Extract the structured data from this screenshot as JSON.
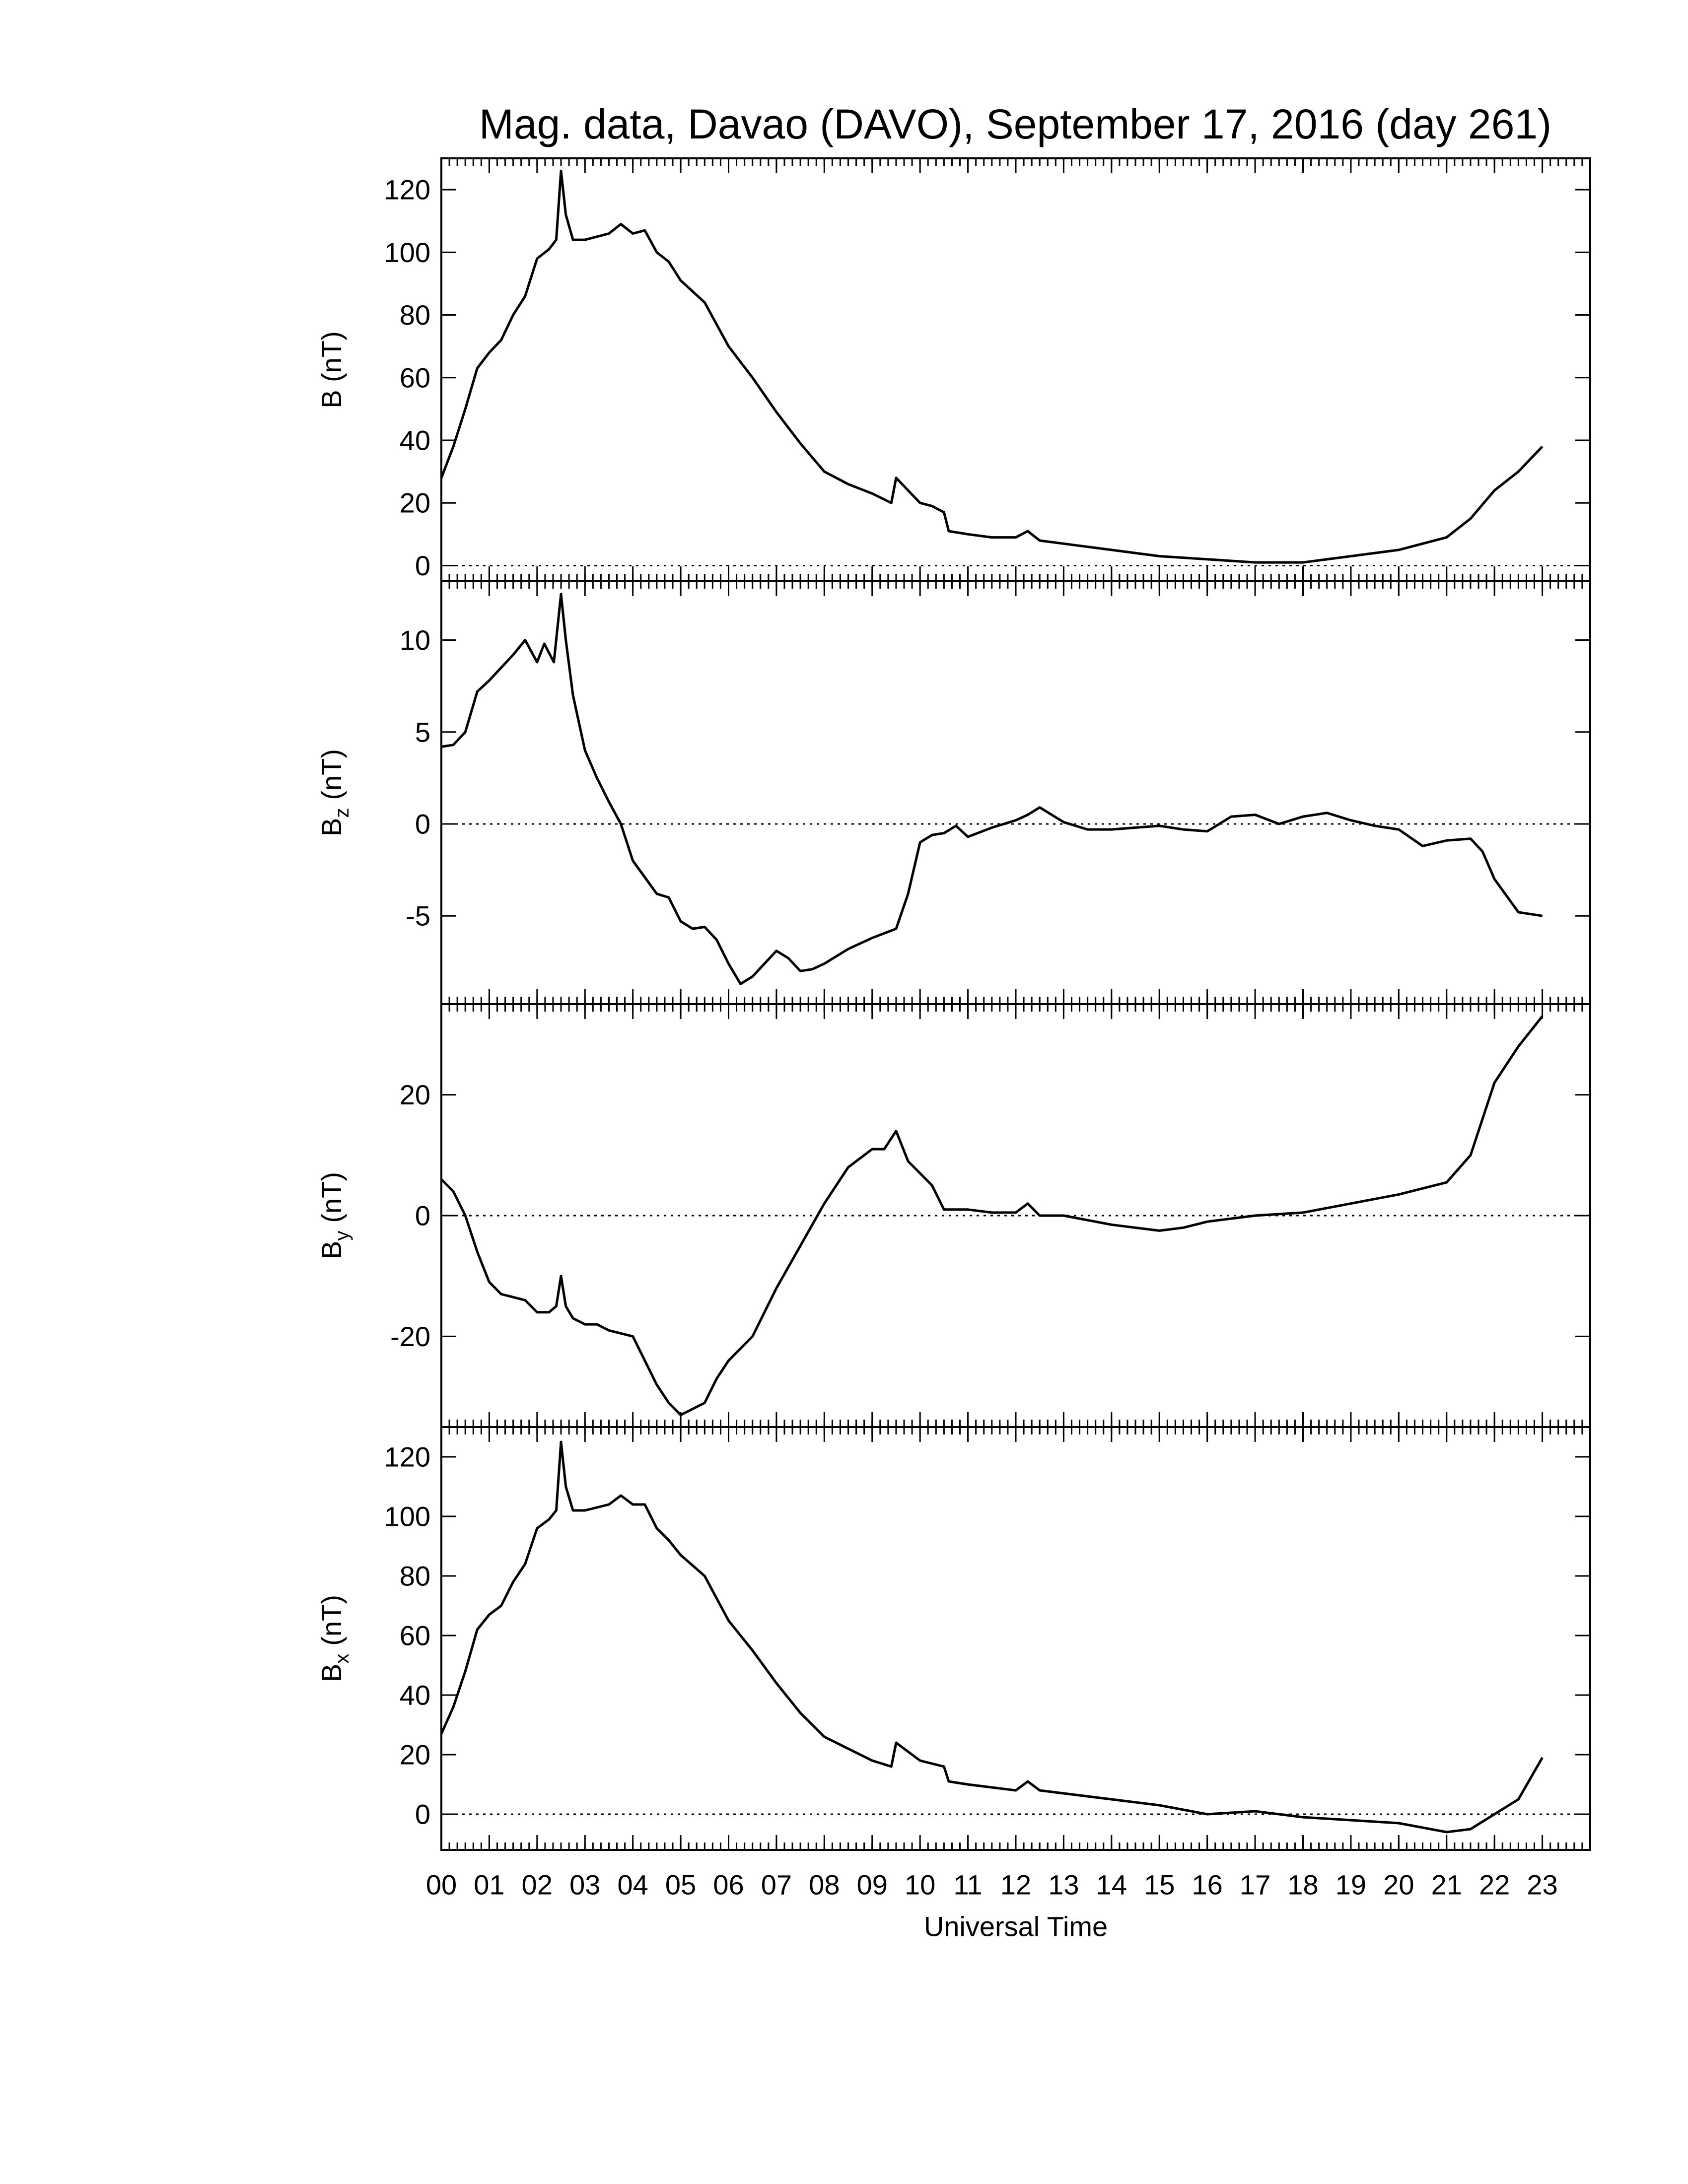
{
  "chart_data": [
    {
      "type": "line",
      "title": "Mag. data, Davao (DAVO), September 17, 2016 (day 261)",
      "ylabel": "B (nT)",
      "x": [
        0,
        0.25,
        0.5,
        0.75,
        1,
        1.25,
        1.5,
        1.75,
        2,
        2.25,
        2.4,
        2.5,
        2.6,
        2.75,
        3,
        3.25,
        3.5,
        3.75,
        4,
        4.25,
        4.5,
        4.75,
        5,
        5.5,
        6,
        6.5,
        7,
        7.5,
        8,
        8.5,
        9,
        9.4,
        9.5,
        9.75,
        10,
        10.25,
        10.5,
        10.6,
        11,
        11.5,
        12,
        12.25,
        12.5,
        13,
        14,
        15,
        16,
        17,
        18,
        19,
        20,
        21,
        21.5,
        22,
        22.5,
        23
      ],
      "values": [
        28,
        38,
        50,
        63,
        68,
        72,
        80,
        86,
        98,
        101,
        104,
        126,
        112,
        104,
        104,
        105,
        106,
        109,
        106,
        107,
        100,
        97,
        91,
        84,
        70,
        60,
        49,
        39,
        30,
        26,
        23,
        20,
        28,
        24,
        20,
        19,
        17,
        11,
        10,
        9,
        9,
        11,
        8,
        7,
        5,
        3,
        2,
        1,
        1,
        3,
        5,
        9,
        15,
        24,
        30,
        38
      ],
      "color": "#000000",
      "xlim": [
        0,
        24
      ],
      "ylim": [
        -5,
        130
      ],
      "yticks": [
        0,
        20,
        40,
        60,
        80,
        100,
        120
      ],
      "reference_line": 0
    },
    {
      "type": "line",
      "ylabel": "B",
      "ylabel_subscript": "z",
      "ylabel_unit": "(nT)",
      "x": [
        0,
        0.25,
        0.5,
        0.75,
        1,
        1.25,
        1.5,
        1.75,
        2,
        2.15,
        2.35,
        2.5,
        2.6,
        2.75,
        3,
        3.25,
        3.5,
        3.75,
        4,
        4.5,
        4.75,
        5,
        5.25,
        5.5,
        5.75,
        6,
        6.25,
        6.5,
        6.75,
        7,
        7.25,
        7.5,
        7.75,
        8,
        8.5,
        9,
        9.5,
        9.75,
        10,
        10.25,
        10.5,
        10.75,
        11,
        11.5,
        12,
        12.25,
        12.5,
        13,
        13.5,
        14,
        14.5,
        15,
        15.5,
        16,
        16.5,
        17,
        17.5,
        18,
        18.5,
        19,
        19.5,
        20,
        20.5,
        21,
        21.5,
        21.75,
        22,
        22.5,
        23
      ],
      "values": [
        4.2,
        4.3,
        5,
        7.2,
        7.8,
        8.5,
        9.2,
        10,
        8.8,
        9.8,
        8.8,
        12.5,
        10,
        7,
        4,
        2.5,
        1.2,
        0,
        -2,
        -3.8,
        -4,
        -5.3,
        -5.7,
        -5.6,
        -6.3,
        -7.6,
        -8.7,
        -8.3,
        -7.6,
        -6.9,
        -7.3,
        -8,
        -7.9,
        -7.6,
        -6.8,
        -6.2,
        -5.7,
        -3.8,
        -1,
        -0.6,
        -0.5,
        -0.1,
        -0.7,
        -0.2,
        0.2,
        0.5,
        0.9,
        0.1,
        -0.3,
        -0.3,
        -0.2,
        -0.1,
        -0.3,
        -0.4,
        0.4,
        0.5,
        0,
        0.4,
        0.6,
        0.2,
        -0.1,
        -0.3,
        -1.2,
        -0.9,
        -0.8,
        -1.5,
        -3,
        -4.8,
        -5
      ],
      "color": "#000000",
      "xlim": [
        0,
        24
      ],
      "ylim": [
        -9.8,
        13.2
      ],
      "yticks": [
        -5,
        0,
        5,
        10
      ],
      "reference_line": 0
    },
    {
      "type": "line",
      "ylabel": "B",
      "ylabel_subscript": "y",
      "ylabel_unit": "(nT)",
      "x": [
        0,
        0.25,
        0.5,
        0.75,
        1,
        1.25,
        1.5,
        1.75,
        2,
        2.25,
        2.4,
        2.5,
        2.6,
        2.75,
        3,
        3.25,
        3.5,
        4,
        4.25,
        4.5,
        4.75,
        5,
        5.25,
        5.5,
        5.75,
        6,
        6.5,
        7,
        7.5,
        8,
        8.5,
        9,
        9.25,
        9.5,
        9.75,
        10,
        10.25,
        10.5,
        11,
        11.5,
        12,
        12.25,
        12.5,
        13,
        14,
        15,
        15.5,
        16,
        17,
        18,
        19,
        20,
        21,
        21.5,
        22,
        22.5,
        23
      ],
      "values": [
        6,
        4,
        0,
        -6,
        -11,
        -13,
        -13.5,
        -14,
        -16,
        -16,
        -15,
        -10,
        -15,
        -17,
        -18,
        -18,
        -19,
        -20,
        -24,
        -28,
        -31,
        -33,
        -32,
        -31,
        -27,
        -24,
        -20,
        -12,
        -5,
        2,
        8,
        11,
        11,
        14,
        9,
        7,
        5,
        1,
        1,
        0.5,
        0.5,
        2,
        0,
        0,
        -1.5,
        -2.5,
        -2,
        -1,
        0,
        0.5,
        2,
        3.5,
        5.5,
        10,
        22,
        28,
        33
      ],
      "color": "#000000",
      "xlim": [
        0,
        24
      ],
      "ylim": [
        -35,
        35
      ],
      "yticks": [
        -20,
        0,
        20
      ],
      "reference_line": 0
    },
    {
      "type": "line",
      "ylabel": "B",
      "ylabel_subscript": "x",
      "ylabel_unit": "(nT)",
      "xlabel": "Universal Time",
      "x": [
        0,
        0.25,
        0.5,
        0.75,
        1,
        1.25,
        1.5,
        1.75,
        2,
        2.25,
        2.4,
        2.5,
        2.6,
        2.75,
        3,
        3.25,
        3.5,
        3.75,
        4,
        4.25,
        4.5,
        4.75,
        5,
        5.5,
        6,
        6.5,
        7,
        7.5,
        8,
        8.5,
        9,
        9.4,
        9.5,
        9.75,
        10,
        10.25,
        10.5,
        10.6,
        11,
        11.5,
        12,
        12.25,
        12.5,
        13,
        14,
        15,
        16,
        17,
        18,
        19,
        20,
        21,
        21.5,
        22,
        22.5,
        23
      ],
      "values": [
        27,
        36,
        48,
        62,
        67,
        70,
        78,
        84,
        96,
        99,
        102,
        125,
        110,
        102,
        102,
        103,
        104,
        107,
        104,
        104,
        96,
        92,
        87,
        80,
        65,
        55,
        44,
        34,
        26,
        22,
        18,
        16,
        24,
        21,
        18,
        17,
        16,
        11,
        10,
        9,
        8,
        11,
        8,
        7,
        5,
        3,
        0,
        1,
        -1,
        -2,
        -3,
        -6,
        -5,
        0,
        5,
        19
      ],
      "color": "#000000",
      "xlim": [
        0,
        24
      ],
      "ylim": [
        -12,
        130
      ],
      "yticks": [
        0,
        20,
        40,
        60,
        80,
        100,
        120
      ],
      "reference_line": 0,
      "xticks": [
        {
          "value": 0,
          "label": "00"
        },
        {
          "value": 1,
          "label": "01"
        },
        {
          "value": 2,
          "label": "02"
        },
        {
          "value": 3,
          "label": "03"
        },
        {
          "value": 4,
          "label": "04"
        },
        {
          "value": 5,
          "label": "05"
        },
        {
          "value": 6,
          "label": "06"
        },
        {
          "value": 7,
          "label": "07"
        },
        {
          "value": 8,
          "label": "08"
        },
        {
          "value": 9,
          "label": "09"
        },
        {
          "value": 10,
          "label": "10"
        },
        {
          "value": 11,
          "label": "11"
        },
        {
          "value": 12,
          "label": "12"
        },
        {
          "value": 13,
          "label": "13"
        },
        {
          "value": 14,
          "label": "14"
        },
        {
          "value": 15,
          "label": "15"
        },
        {
          "value": 16,
          "label": "16"
        },
        {
          "value": 17,
          "label": "17"
        },
        {
          "value": 18,
          "label": "18"
        },
        {
          "value": 19,
          "label": "19"
        },
        {
          "value": 20,
          "label": "20"
        },
        {
          "value": 21,
          "label": "21"
        },
        {
          "value": 22,
          "label": "22"
        },
        {
          "value": 23,
          "label": "23"
        }
      ]
    }
  ]
}
